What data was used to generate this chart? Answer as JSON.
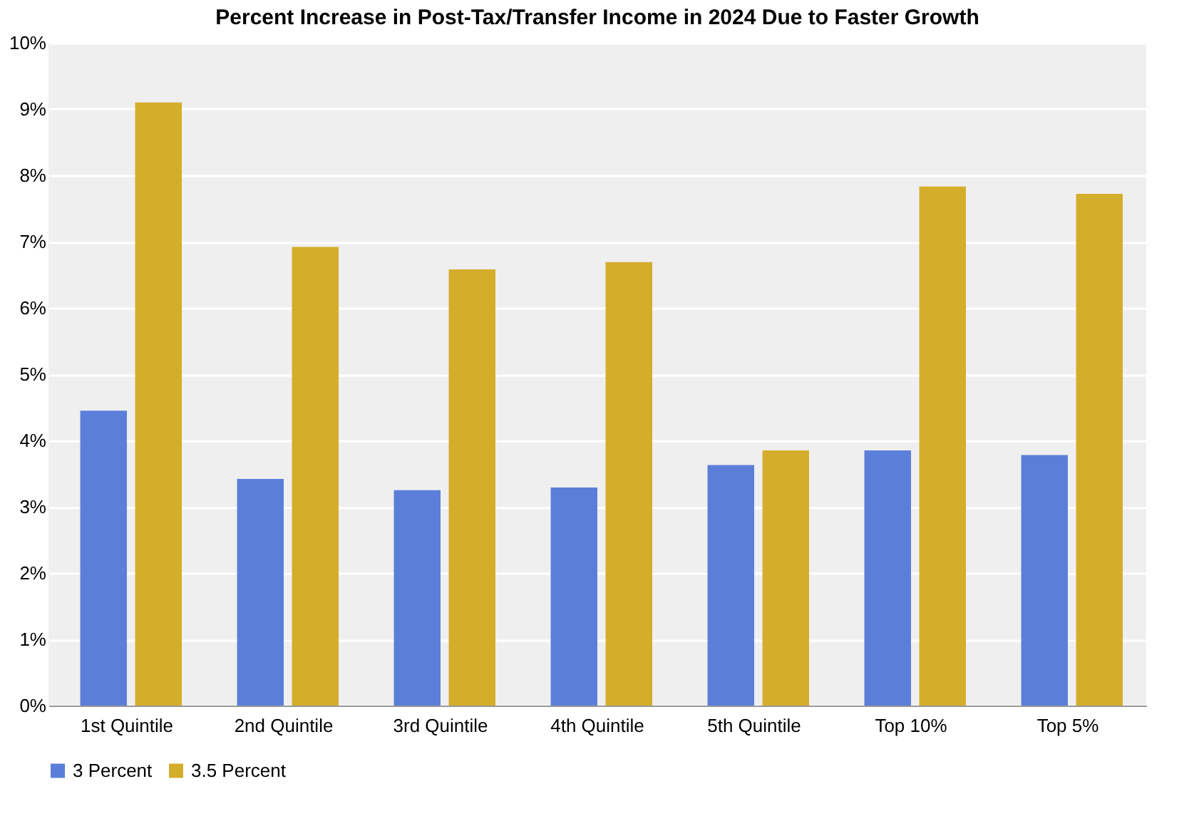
{
  "chart_data": {
    "type": "bar",
    "title": "Percent Increase in Post-Tax/Transfer Income in 2024 Due to Faster Growth",
    "categories": [
      "1st Quintile",
      "2nd Quintile",
      "3rd Quintile",
      "4th Quintile",
      "5th Quintile",
      "Top 10%",
      "Top 5%"
    ],
    "series": [
      {
        "name": "3 Percent",
        "color": "#5b7fd9",
        "values": [
          4.45,
          3.42,
          3.25,
          3.29,
          3.63,
          3.85,
          3.78
        ]
      },
      {
        "name": "3.5 Percent",
        "color": "#d4ad2b",
        "values": [
          9.1,
          6.92,
          6.58,
          6.69,
          3.85,
          7.83,
          7.72
        ]
      }
    ],
    "ylim": [
      0,
      10
    ],
    "yticks": [
      {
        "value": 0,
        "label": "0%"
      },
      {
        "value": 1,
        "label": "1%"
      },
      {
        "value": 2,
        "label": "2%"
      },
      {
        "value": 3,
        "label": "3%"
      },
      {
        "value": 4,
        "label": "4%"
      },
      {
        "value": 5,
        "label": "5%"
      },
      {
        "value": 6,
        "label": "6%"
      },
      {
        "value": 7,
        "label": "7%"
      },
      {
        "value": 8,
        "label": "8%"
      },
      {
        "value": 9,
        "label": "9%"
      },
      {
        "value": 10,
        "label": "10%"
      }
    ],
    "grid": "y",
    "legend": "bottom"
  }
}
